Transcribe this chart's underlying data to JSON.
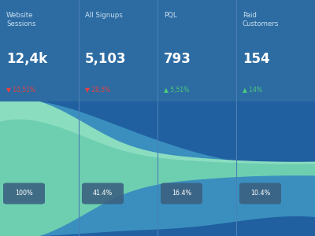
{
  "background_color": "#2d6ca2",
  "columns": [
    {
      "label": "Website\nSessions",
      "value": "12,4k",
      "pct_change": "▼ 10,51%",
      "pct_color": "#e84040",
      "share": "100%",
      "share_val": 1.0
    },
    {
      "label": "All Signups",
      "value": "5,103",
      "pct_change": "▼ 28,5%",
      "pct_color": "#e84040",
      "share": "41.4%",
      "share_val": 0.414
    },
    {
      "label": "PQL",
      "value": "793",
      "pct_change": "▲ 5,51%",
      "pct_color": "#4cca7a",
      "share": "16.4%",
      "share_val": 0.164
    },
    {
      "label": "Paid\nCustomers",
      "value": "154",
      "pct_change": "▲ 14%",
      "pct_color": "#4cca7a",
      "share": "10.4%",
      "share_val": 0.104
    }
  ],
  "divider_color": "#4a7fb5",
  "flow_color_teal": "#6ecfb0",
  "flow_color_blue_mid": "#3a8fbf",
  "flow_color_blue_dark": "#2060a0",
  "label_color": "#c8dff0",
  "value_color": "#ffffff",
  "badge_color": "#3a6080"
}
